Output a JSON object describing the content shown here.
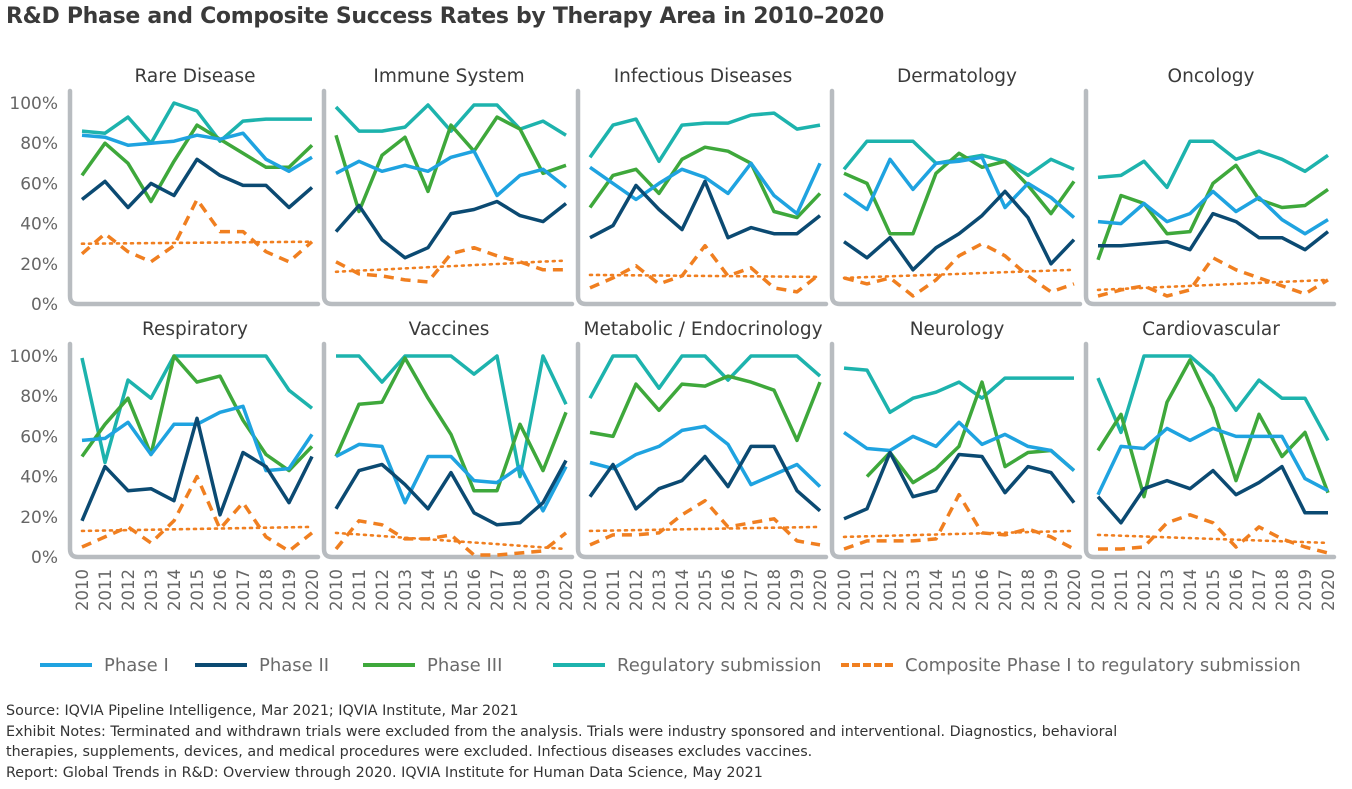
{
  "title": "R&D Phase and Composite Success Rates by Therapy Area in 2010–2020",
  "colors": {
    "phase1": "#1fa3e0",
    "phase2": "#0b4a72",
    "phase3": "#3ea83b",
    "regulatory": "#1db3ad",
    "composite": "#f07f20",
    "axis": "#b8bcc0",
    "tick_text": "#666666"
  },
  "legend": [
    {
      "key": "phase1",
      "label": "Phase I",
      "dashed": false
    },
    {
      "key": "phase2",
      "label": "Phase II",
      "dashed": false
    },
    {
      "key": "phase3",
      "label": "Phase III",
      "dashed": false
    },
    {
      "key": "regulatory",
      "label": "Regulatory submission",
      "dashed": false
    },
    {
      "key": "composite",
      "label": "Composite Phase I to regulatory submission",
      "dashed": true
    }
  ],
  "notes": [
    "Source: IQVIA Pipeline Intelligence, Mar 2021; IQVIA Institute, Mar 2021",
    "Exhibit Notes: Terminated and withdrawn trials were excluded from the analysis. Trials were industry sponsored and interventional. Diagnostics, behavioral",
    "therapies, supplements, devices, and medical procedures were excluded. Infectious diseases excludes vaccines.",
    "Report: Global Trends in R&D: Overview through 2020. IQVIA Institute for Human Data Science, May 2021"
  ],
  "chart_data": {
    "type": "line",
    "x": [
      "2010",
      "2011",
      "2012",
      "2013",
      "2014",
      "2015",
      "2016",
      "2017",
      "2018",
      "2019",
      "2020"
    ],
    "y_ticks": [
      "0%",
      "20%",
      "40%",
      "60%",
      "80%",
      "100%"
    ],
    "ylim": [
      0,
      100
    ],
    "panels": [
      {
        "title": "Rare Disease",
        "phase1": [
          84,
          83,
          79,
          80,
          81,
          84,
          82,
          85,
          72,
          66,
          73
        ],
        "phase2": [
          52,
          61,
          48,
          60,
          54,
          72,
          64,
          59,
          59,
          48,
          58
        ],
        "phase3": [
          64,
          80,
          70,
          51,
          71,
          89,
          82,
          75,
          68,
          68,
          79
        ],
        "regulatory": [
          86,
          85,
          93,
          80,
          100,
          96,
          81,
          91,
          92,
          92,
          92
        ],
        "composite": [
          25,
          35,
          26,
          21,
          29,
          52,
          36,
          36,
          26,
          21,
          31
        ],
        "composite_trend": [
          30,
          30.1,
          30.2,
          30.3,
          30.4,
          30.5,
          30.6,
          30.7,
          30.8,
          30.9,
          31
        ]
      },
      {
        "title": "Immune System",
        "phase1": [
          65,
          71,
          66,
          69,
          66,
          73,
          76,
          54,
          64,
          67,
          58
        ],
        "phase2": [
          36,
          49,
          32,
          23,
          28,
          45,
          47,
          51,
          44,
          41,
          50
        ],
        "phase3": [
          84,
          46,
          74,
          83,
          56,
          89,
          76,
          93,
          87,
          65,
          69
        ],
        "regulatory": [
          98,
          86,
          86,
          88,
          99,
          86,
          99,
          99,
          87,
          91,
          84
        ],
        "composite": [
          21,
          15,
          14,
          12,
          11,
          25,
          28,
          24,
          21,
          17,
          17
        ],
        "composite_trend": [
          16,
          16.6,
          17.1,
          17.7,
          18.3,
          18.8,
          19.4,
          19.9,
          20.5,
          21.1,
          21.6
        ]
      },
      {
        "title": "Infectious Diseases",
        "phase1": [
          68,
          60,
          52,
          60,
          67,
          63,
          55,
          70,
          54,
          45,
          70
        ],
        "phase2": [
          33,
          39,
          59,
          47,
          37,
          61,
          33,
          38,
          35,
          35,
          44
        ],
        "phase3": [
          48,
          64,
          67,
          55,
          72,
          78,
          76,
          70,
          46,
          43,
          55
        ],
        "regulatory": [
          73,
          89,
          92,
          71,
          89,
          90,
          90,
          94,
          95,
          87,
          89
        ],
        "composite": [
          8,
          13,
          19,
          10,
          14,
          29,
          14,
          18,
          8,
          6,
          15
        ],
        "composite_trend": [
          14.5,
          14.4,
          14.3,
          14.2,
          14.1,
          14,
          13.9,
          13.8,
          13.7,
          13.6,
          13.5
        ]
      },
      {
        "title": "Dermatology",
        "phase1": [
          55,
          47,
          72,
          57,
          70,
          71,
          73,
          48,
          60,
          53,
          43
        ],
        "phase2": [
          31,
          23,
          33,
          17,
          28,
          35,
          44,
          56,
          43,
          20,
          32
        ],
        "phase3": [
          65,
          60,
          35,
          35,
          65,
          75,
          68,
          71,
          59,
          45,
          61
        ],
        "regulatory": [
          67,
          81,
          81,
          81,
          70,
          72,
          74,
          71,
          64,
          72,
          67
        ],
        "composite": [
          13,
          10,
          13,
          4,
          12,
          24,
          30,
          24,
          14,
          6,
          10
        ],
        "composite_trend": [
          13,
          13.4,
          13.8,
          14.2,
          14.6,
          15,
          15.4,
          15.8,
          16.2,
          16.6,
          17
        ]
      },
      {
        "title": "Oncology",
        "phase1": [
          41,
          40,
          50,
          41,
          45,
          56,
          46,
          53,
          42,
          35,
          42
        ],
        "phase2": [
          29,
          29,
          30,
          31,
          27,
          45,
          41,
          33,
          33,
          27,
          36
        ],
        "phase3": [
          22,
          54,
          50,
          35,
          36,
          60,
          69,
          52,
          48,
          49,
          57
        ],
        "regulatory": [
          63,
          64,
          71,
          58,
          81,
          81,
          72,
          76,
          72,
          66,
          74
        ],
        "composite": [
          4,
          7,
          9,
          4,
          7,
          23,
          17,
          13,
          9,
          5,
          12
        ],
        "composite_trend": [
          7,
          7.5,
          8,
          8.5,
          9,
          9.5,
          10,
          10.5,
          11,
          11.5,
          12
        ]
      },
      {
        "title": "Respiratory",
        "phase1": [
          58,
          59,
          67,
          51,
          66,
          66,
          72,
          75,
          43,
          44,
          61
        ],
        "phase2": [
          18,
          45,
          33,
          34,
          28,
          69,
          21,
          52,
          45,
          27,
          50
        ],
        "phase3": [
          50,
          66,
          79,
          51,
          100,
          87,
          90,
          68,
          51,
          43,
          55
        ],
        "regulatory": [
          99,
          47,
          88,
          79,
          100,
          100,
          100,
          100,
          100,
          83,
          74
        ],
        "composite": [
          5,
          10,
          15,
          7,
          18,
          40,
          14,
          27,
          10,
          3,
          12
        ],
        "composite_trend": [
          13,
          13.2,
          13.4,
          13.6,
          13.8,
          14,
          14.2,
          14.4,
          14.6,
          14.8,
          15
        ]
      },
      {
        "title": "Vaccines",
        "phase1": [
          50,
          56,
          55,
          27,
          50,
          50,
          38,
          37,
          45,
          23,
          45
        ],
        "phase2": [
          24,
          43,
          46,
          36,
          24,
          42,
          22,
          16,
          17,
          27,
          48
        ],
        "phase3": [
          50,
          76,
          77,
          99,
          79,
          61,
          33,
          33,
          66,
          43,
          72
        ],
        "regulatory": [
          100,
          100,
          87,
          100,
          100,
          100,
          91,
          100,
          40,
          100,
          76
        ],
        "composite": [
          4,
          18,
          16,
          9,
          9,
          11,
          1,
          1,
          2,
          3,
          12
        ],
        "composite_trend": [
          12,
          11.2,
          10.4,
          9.6,
          8.8,
          8,
          7.2,
          6.4,
          5.6,
          4.8,
          4
        ]
      },
      {
        "title": "Metabolic / Endocrinology",
        "phase1": [
          47,
          44,
          51,
          55,
          63,
          65,
          56,
          36,
          41,
          46,
          35
        ],
        "phase2": [
          30,
          46,
          24,
          34,
          38,
          50,
          35,
          55,
          55,
          33,
          23
        ],
        "phase3": [
          62,
          60,
          86,
          73,
          86,
          85,
          90,
          87,
          83,
          58,
          87
        ],
        "regulatory": [
          79,
          100,
          100,
          84,
          100,
          100,
          88,
          100,
          100,
          100,
          90
        ],
        "composite": [
          6,
          11,
          11,
          12,
          21,
          28,
          15,
          17,
          19,
          8,
          6
        ],
        "composite_trend": [
          13,
          13.2,
          13.4,
          13.6,
          13.8,
          14,
          14.2,
          14.4,
          14.6,
          14.8,
          15
        ]
      },
      {
        "title": "Neurology",
        "phase1": [
          62,
          54,
          53,
          60,
          55,
          67,
          56,
          61,
          55,
          53,
          43
        ],
        "phase2": [
          19,
          24,
          52,
          30,
          33,
          51,
          50,
          32,
          45,
          42,
          27
        ],
        "phase3": [
          null,
          40,
          52,
          37,
          44,
          55,
          87,
          45,
          52,
          53,
          43
        ],
        "regulatory": [
          94,
          93,
          72,
          79,
          82,
          87,
          79,
          89,
          89,
          89,
          89
        ],
        "composite": [
          4,
          8,
          8,
          8,
          9,
          31,
          12,
          11,
          14,
          10,
          4
        ],
        "composite_trend": [
          10,
          10.3,
          10.6,
          10.9,
          11.2,
          11.5,
          11.8,
          12.1,
          12.4,
          12.7,
          13
        ]
      },
      {
        "title": "Cardiovascular",
        "phase1": [
          31,
          55,
          54,
          64,
          58,
          64,
          60,
          60,
          60,
          39,
          33
        ],
        "phase2": [
          30,
          17,
          34,
          38,
          34,
          43,
          31,
          37,
          45,
          22,
          22
        ],
        "phase3": [
          53,
          71,
          30,
          77,
          98,
          74,
          38,
          71,
          50,
          62,
          32
        ],
        "regulatory": [
          89,
          62,
          100,
          100,
          100,
          90,
          73,
          88,
          79,
          79,
          58
        ],
        "composite": [
          4,
          4,
          5,
          17,
          21,
          17,
          5,
          15,
          9,
          5,
          2
        ],
        "composite_trend": [
          11,
          10.6,
          10.2,
          9.8,
          9.4,
          9,
          8.6,
          8.2,
          7.8,
          7.4,
          7
        ]
      }
    ]
  }
}
